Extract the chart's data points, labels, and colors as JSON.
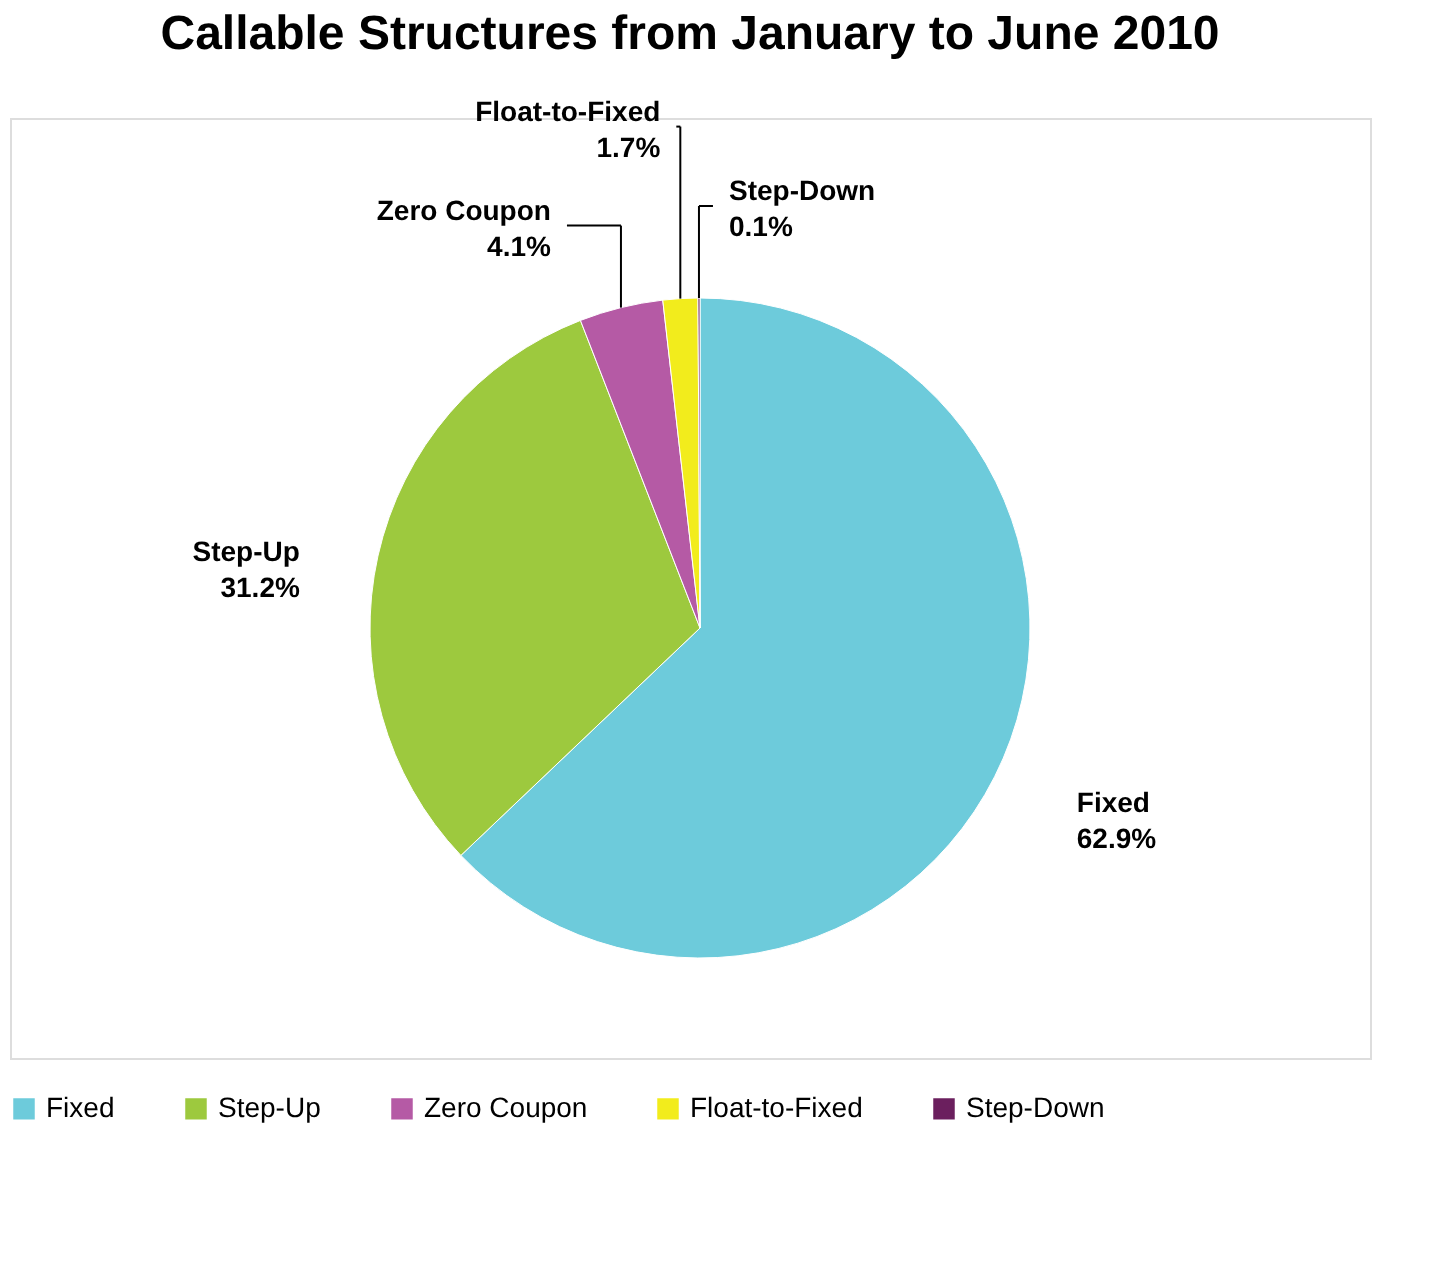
{
  "chart_data": {
    "type": "pie",
    "title": "Callable Structures from January to June 2010",
    "categories": [
      "Fixed",
      "Step-Up",
      "Zero Coupon",
      "Float-to-Fixed",
      "Step-Down"
    ],
    "values": [
      62.9,
      31.2,
      4.1,
      1.7,
      0.1
    ],
    "colors": [
      "#6dcbdb",
      "#9dc93e",
      "#b55aa5",
      "#f2ec1c",
      "#6b1f5e"
    ],
    "value_labels": [
      "62.9%",
      "31.2%",
      "4.1%",
      "1.7%",
      "0.1%"
    ],
    "legend": "bottom"
  }
}
